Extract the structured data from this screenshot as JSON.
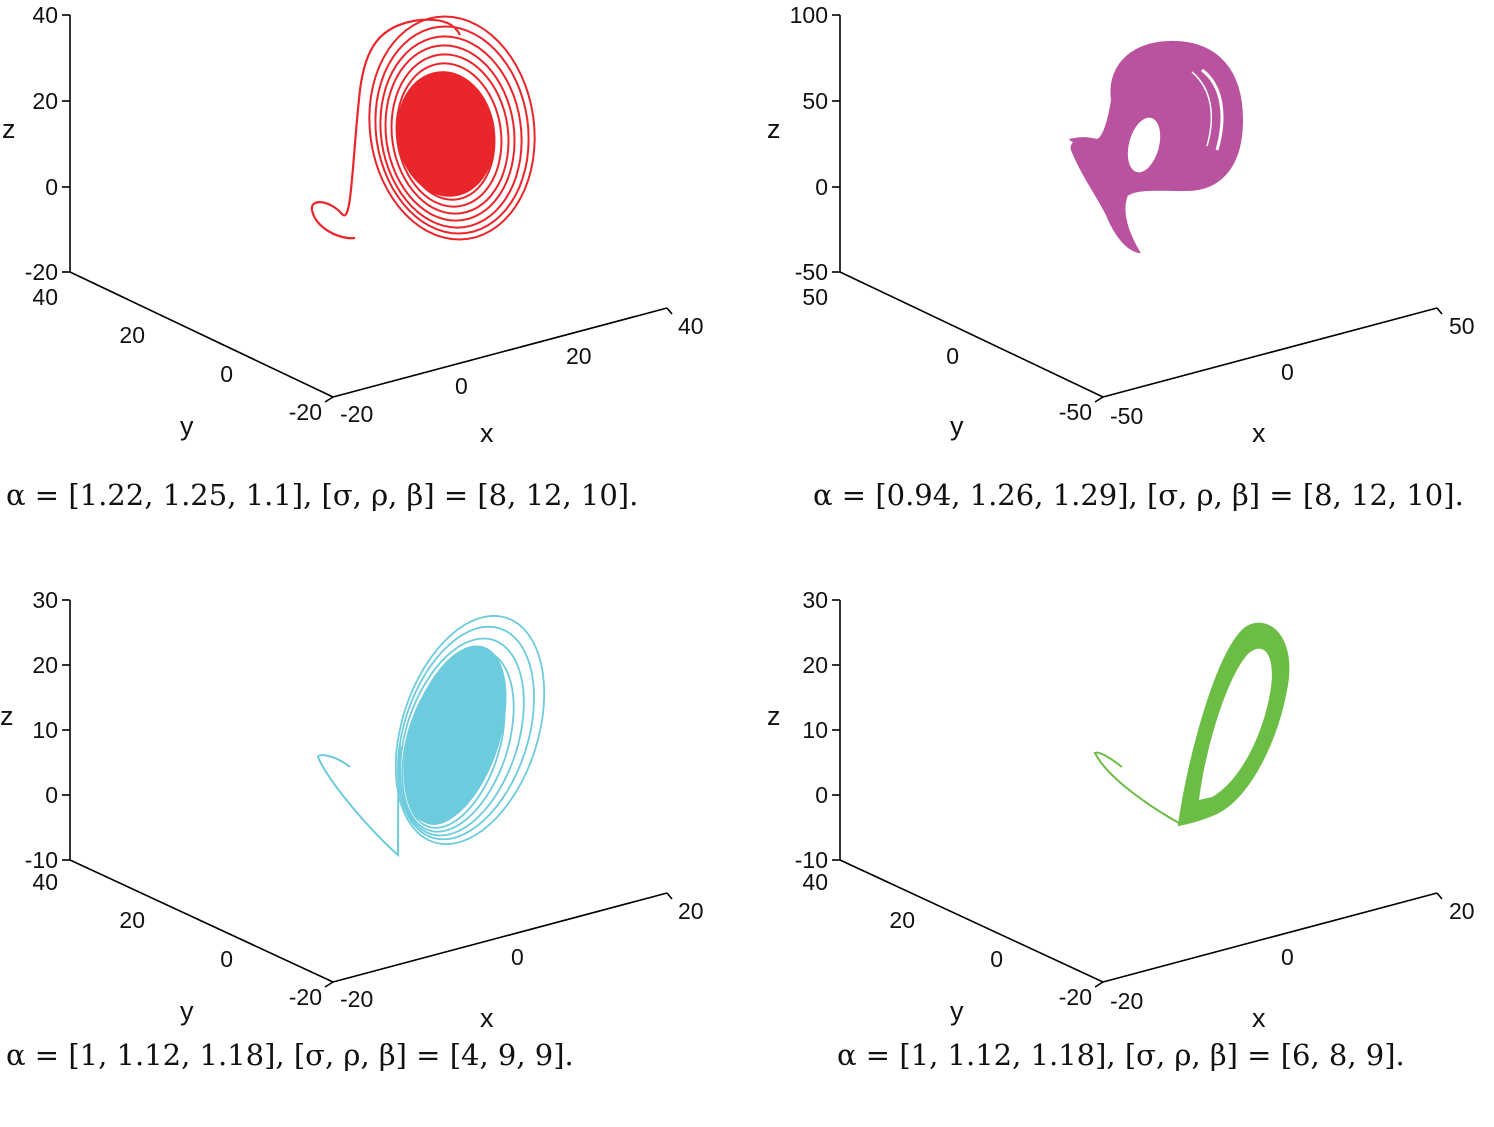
{
  "chart_data": [
    {
      "type": "scatter",
      "subtype": "3d-trajectory",
      "color": "#e8262b",
      "caption": "α = [1.22, 1.25, 1.1], [σ, ρ, β] = [8, 12, 10].",
      "xlabel": "x",
      "ylabel": "y",
      "zlabel": "z",
      "x_ticks": [
        "-20",
        "0",
        "20",
        "40"
      ],
      "y_ticks": [
        "-20",
        "0",
        "20",
        "40"
      ],
      "z_ticks": [
        "-20",
        "0",
        "20",
        "40"
      ],
      "xlim": [
        -20,
        40
      ],
      "ylim": [
        -20,
        40
      ],
      "zlim": [
        -20,
        40
      ]
    },
    {
      "type": "scatter",
      "subtype": "3d-trajectory",
      "color": "#b9529f",
      "caption": "α = [0.94, 1.26, 1.29], [σ, ρ, β] = [8, 12, 10].",
      "xlabel": "x",
      "ylabel": "y",
      "zlabel": "z",
      "x_ticks": [
        "-50",
        "0",
        "50"
      ],
      "y_ticks": [
        "-50",
        "0",
        "50"
      ],
      "z_ticks": [
        "-50",
        "0",
        "50",
        "100"
      ],
      "xlim": [
        -50,
        50
      ],
      "ylim": [
        -50,
        50
      ],
      "zlim": [
        -50,
        100
      ]
    },
    {
      "type": "scatter",
      "subtype": "3d-trajectory",
      "color": "#6ccbdc",
      "caption": "α = [1, 1.12, 1.18], [σ, ρ, β] = [4, 9, 9].",
      "xlabel": "x",
      "ylabel": "y",
      "zlabel": "z",
      "x_ticks": [
        "-20",
        "0",
        "20"
      ],
      "y_ticks": [
        "-20",
        "0",
        "20",
        "40"
      ],
      "z_ticks": [
        "-10",
        "0",
        "10",
        "20",
        "30"
      ],
      "xlim": [
        -20,
        20
      ],
      "ylim": [
        -20,
        40
      ],
      "zlim": [
        -10,
        30
      ]
    },
    {
      "type": "scatter",
      "subtype": "3d-trajectory",
      "color": "#6cbd45",
      "caption": "α = [1, 1.12, 1.18], [σ, ρ, β] = [6, 8, 9].",
      "xlabel": "x",
      "ylabel": "y",
      "zlabel": "z",
      "x_ticks": [
        "-20",
        "0",
        "20"
      ],
      "y_ticks": [
        "-20",
        "0",
        "20",
        "40"
      ],
      "z_ticks": [
        "-10",
        "0",
        "10",
        "20",
        "30"
      ],
      "xlim": [
        -20,
        20
      ],
      "ylim": [
        -20,
        40
      ],
      "zlim": [
        -10,
        30
      ]
    }
  ]
}
